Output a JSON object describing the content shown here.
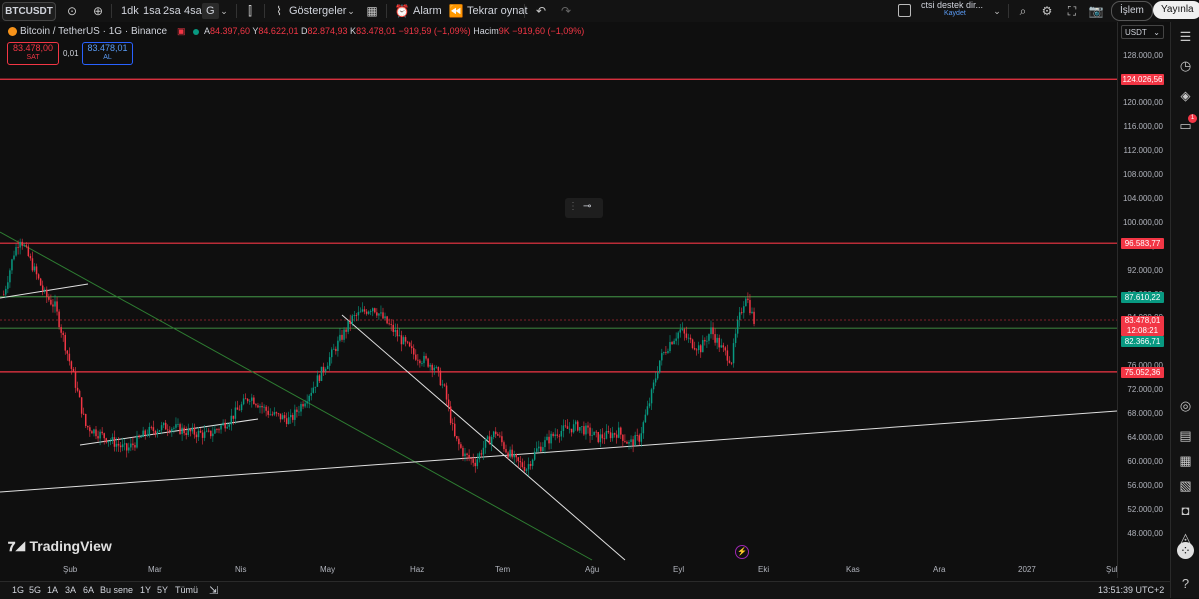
{
  "toolbar": {
    "symbol": "BTCUSDT",
    "intervals": [
      "1dk",
      "1sa",
      "2sa",
      "4sa",
      "G"
    ],
    "indicators_label": "Göstergeler",
    "alarm_label": "Alarm",
    "replay_label": "Tekrar oynat",
    "layout_name": "ctsi destek dir...",
    "layout_sub": "Kaydet",
    "trade_label": "İşlem",
    "publish_label": "Yayınla"
  },
  "legend": {
    "title": "Bitcoin / TetherUS · 1G · Binance",
    "o_label": "A",
    "o_value": "84.397,60",
    "h_label": "Y",
    "h_value": "84.622,01",
    "l_label": "D",
    "l_value": "82.874,93",
    "c_label": "K",
    "c_value": "83.478,01",
    "change": "−919,59 (−1,09%)",
    "vol_label": "Hacim",
    "vol_value": "9K",
    "vol_change": "−919,60 (−1,09%)"
  },
  "trade_panel": {
    "sell_price": "83.478,00",
    "sell_label": "SAT",
    "spread": "0,01",
    "buy_price": "83.478,01",
    "buy_label": "AL"
  },
  "price_axis": {
    "currency": "USDT",
    "labels": [
      "128.000,00",
      "124.000,00",
      "120.000,00",
      "116.000,00",
      "112.000,00",
      "108.000,00",
      "104.000,00",
      "100.000,00",
      "96.000,00",
      "92.000,00",
      "88.000,00",
      "84.000,00",
      "80.000,00",
      "76.000,00",
      "72.000,00",
      "68.000,00",
      "64.000,00",
      "60.000,00",
      "56.000,00",
      "52.000,00",
      "48.000,00"
    ],
    "tags": {
      "r1": "124.026,56",
      "r2": "96.583,77",
      "g1": "87.610,22",
      "last": "83.478,01",
      "countdown": "12:08:21",
      "g2": "82.366,71",
      "r3": "75.052,36"
    }
  },
  "time_axis": {
    "labels": [
      "Şub",
      "Mar",
      "Nis",
      "May",
      "Haz",
      "Tem",
      "Ağu",
      "Eyl",
      "Eki",
      "Kas",
      "Ara",
      "2027",
      "Şul"
    ]
  },
  "bottom": {
    "ranges": [
      "1G",
      "5G",
      "1A",
      "3A",
      "6A",
      "Bu sene",
      "1Y",
      "5Y",
      "Tümü"
    ],
    "clock": "13:51:39 UTC+2"
  },
  "watermark": "TradingView",
  "colors": {
    "red_line": "#f23645",
    "green_line": "#4caf50",
    "up_candle": "#089981",
    "down_candle": "#f23645",
    "accent_blue": "#2962ff",
    "last_price_tag": "#f23645"
  },
  "chart_data": {
    "type": "candlestick",
    "title": "Bitcoin / TetherUS · 1G · Binance",
    "ylim": [
      46000,
      130000
    ],
    "horizontal_levels": [
      {
        "value": 124026.56,
        "color": "red"
      },
      {
        "value": 96583.77,
        "color": "red"
      },
      {
        "value": 87610.22,
        "color": "green"
      },
      {
        "value": 82366.71,
        "color": "green"
      },
      {
        "value": 75052.36,
        "color": "red"
      }
    ],
    "last_price": 83478.01,
    "price_path": [
      [
        0,
        88000
      ],
      [
        5,
        95000
      ],
      [
        8,
        97500
      ],
      [
        15,
        92000
      ],
      [
        20,
        88000
      ],
      [
        25,
        86000
      ],
      [
        35,
        73000
      ],
      [
        40,
        66000
      ],
      [
        50,
        64000
      ],
      [
        60,
        62000
      ],
      [
        70,
        65000
      ],
      [
        80,
        66000
      ],
      [
        90,
        65000
      ],
      [
        100,
        64500
      ],
      [
        110,
        67000
      ],
      [
        120,
        71000
      ],
      [
        130,
        68000
      ],
      [
        140,
        67000
      ],
      [
        150,
        72000
      ],
      [
        160,
        78000
      ],
      [
        170,
        84000
      ],
      [
        180,
        86000
      ],
      [
        190,
        82000
      ],
      [
        200,
        78000
      ],
      [
        210,
        76000
      ],
      [
        215,
        72000
      ],
      [
        220,
        64000
      ],
      [
        225,
        61000
      ],
      [
        230,
        60000
      ],
      [
        235,
        63000
      ],
      [
        240,
        65000
      ],
      [
        245,
        62000
      ],
      [
        250,
        60000
      ],
      [
        255,
        59000
      ],
      [
        260,
        62000
      ],
      [
        265,
        63500
      ],
      [
        270,
        65000
      ],
      [
        280,
        66000
      ],
      [
        290,
        64000
      ],
      [
        300,
        65000
      ],
      [
        305,
        63000
      ],
      [
        310,
        64000
      ],
      [
        315,
        70000
      ],
      [
        320,
        77000
      ],
      [
        325,
        80000
      ],
      [
        330,
        82000
      ],
      [
        335,
        80000
      ],
      [
        340,
        79000
      ],
      [
        345,
        82000
      ],
      [
        350,
        79000
      ],
      [
        355,
        77000
      ],
      [
        358,
        83000
      ],
      [
        362,
        88000
      ],
      [
        366,
        83500
      ]
    ]
  }
}
